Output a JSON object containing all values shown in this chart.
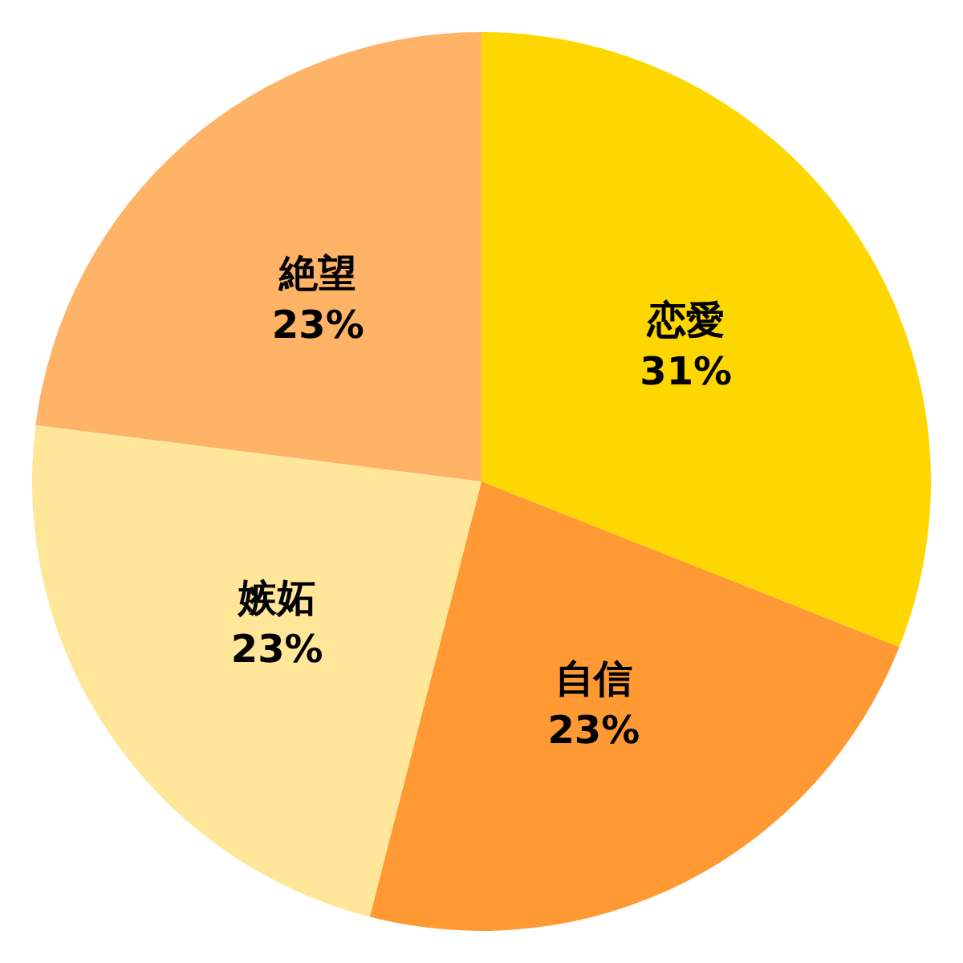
{
  "chart_data": {
    "type": "pie",
    "categories": [
      "恋愛",
      "自信",
      "嫉妬",
      "絶望"
    ],
    "values": [
      31,
      23,
      23,
      23
    ],
    "colors": [
      "#ffd700",
      "#ff9933",
      "#ffe699",
      "#ffb366"
    ],
    "value_labels": [
      "31%",
      "23%",
      "23%",
      "23%"
    ]
  }
}
